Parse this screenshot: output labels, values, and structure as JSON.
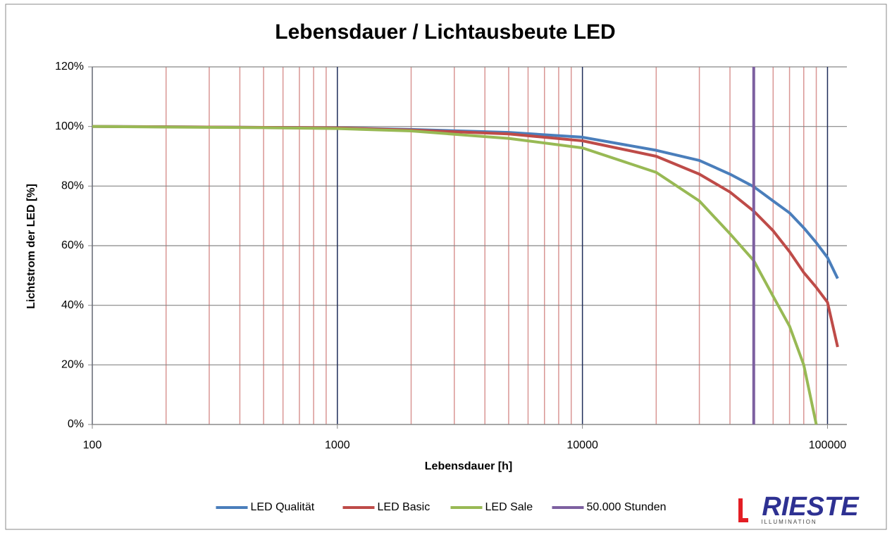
{
  "chart_data": {
    "type": "line",
    "title": "Lebensdauer / Lichtausbeute LED",
    "x_label": "Lebensdauer [h]",
    "y_label": "Lichtstrom der LED  [%]",
    "x_log": true,
    "xlim": [
      100,
      120000
    ],
    "xticks": [
      100,
      1000,
      10000,
      100000
    ],
    "xminorticks": [
      200,
      300,
      400,
      500,
      600,
      700,
      800,
      900,
      2000,
      3000,
      4000,
      5000,
      6000,
      7000,
      8000,
      9000,
      20000,
      30000,
      40000,
      50000,
      60000,
      70000,
      80000,
      90000
    ],
    "ylim": [
      0,
      120
    ],
    "yticks": [
      {
        "value": 0,
        "label": "0%"
      },
      {
        "value": 20,
        "label": "20%"
      },
      {
        "value": 40,
        "label": "40%"
      },
      {
        "value": 60,
        "label": "60%"
      },
      {
        "value": 80,
        "label": "80%"
      },
      {
        "value": 100,
        "label": "100%"
      },
      {
        "value": 120,
        "label": "120%"
      }
    ],
    "grid": true,
    "legend": "bottom",
    "series": [
      {
        "name": "LED Qualität",
        "color": "#4a7ebb",
        "x": [
          100,
          200,
          500,
          1000,
          2000,
          5000,
          10000,
          20000,
          30000,
          40000,
          50000,
          60000,
          70000,
          80000,
          90000,
          100000,
          110000
        ],
        "values": [
          100,
          99.9,
          99.7,
          99.5,
          99,
          98,
          96.4,
          92,
          88.6,
          84,
          79.8,
          75,
          71,
          66,
          61,
          56,
          49
        ]
      },
      {
        "name": "LED Basic",
        "color": "#be4b48",
        "x": [
          100,
          200,
          500,
          1000,
          2000,
          5000,
          10000,
          20000,
          30000,
          40000,
          50000,
          60000,
          70000,
          80000,
          90000,
          100000,
          110000
        ],
        "values": [
          100,
          99.9,
          99.7,
          99.5,
          98.8,
          97.5,
          95.2,
          90,
          84,
          78,
          71.6,
          65,
          58,
          51,
          46,
          41,
          26
        ]
      },
      {
        "name": "LED Sale",
        "color": "#98b954",
        "x": [
          100,
          200,
          500,
          1000,
          2000,
          5000,
          10000,
          20000,
          30000,
          40000,
          50000,
          60000,
          70000,
          80000,
          90000
        ],
        "values": [
          100,
          99.8,
          99.6,
          99.3,
          98.5,
          96,
          92.8,
          84.6,
          75,
          64,
          55,
          43,
          33,
          20,
          0
        ]
      },
      {
        "name": "50.000 Stunden",
        "color": "#7d60a0",
        "x": [
          50000,
          50000
        ],
        "values": [
          0,
          120
        ]
      }
    ]
  },
  "logo": {
    "name": "RIESTE",
    "tagline": "ILLUMINATION"
  }
}
